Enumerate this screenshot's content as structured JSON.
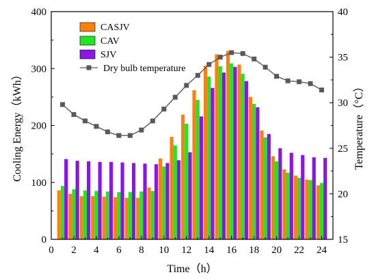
{
  "chart_data": {
    "type": "bar",
    "x": [
      1,
      2,
      3,
      4,
      5,
      6,
      7,
      8,
      9,
      10,
      11,
      12,
      13,
      14,
      15,
      16,
      17,
      18,
      19,
      20,
      21,
      22,
      23,
      24
    ],
    "xlabel": "Time（h）",
    "ylabel": "Cooling Energy（kWh）",
    "y2label": "Temperature（°C）",
    "xlim": [
      0,
      25
    ],
    "xticks": [
      0,
      2,
      4,
      6,
      8,
      10,
      12,
      14,
      16,
      18,
      20,
      22,
      24
    ],
    "ylim": [
      0,
      400
    ],
    "yticks": [
      0,
      100,
      200,
      300,
      400
    ],
    "y2lim": [
      15,
      40
    ],
    "y2ticks": [
      15,
      20,
      25,
      30,
      35,
      40
    ],
    "grid": false,
    "legend_position": "top-left",
    "series": [
      {
        "name": "CASJV",
        "color": "#ff7f0e",
        "axis": "left",
        "type": "bar",
        "values": [
          86,
          80,
          76,
          76,
          75,
          74,
          73,
          73,
          91,
          142,
          180,
          219,
          262,
          305,
          325,
          331,
          307,
          250,
          191,
          146,
          123,
          112,
          105,
          95
        ]
      },
      {
        "name": "CAV",
        "color": "#22e622",
        "axis": "left",
        "type": "bar",
        "values": [
          94,
          88,
          86,
          85,
          84,
          83,
          83,
          84,
          85,
          128,
          165,
          203,
          245,
          286,
          304,
          309,
          291,
          238,
          179,
          137,
          117,
          108,
          104,
          99
        ]
      },
      {
        "name": "SJV",
        "color": "#8b14e6",
        "axis": "left",
        "type": "bar",
        "values": [
          141,
          138,
          137,
          136,
          136,
          135,
          134,
          133,
          132,
          134,
          139,
          153,
          216,
          266,
          293,
          303,
          278,
          232,
          185,
          160,
          152,
          148,
          144,
          143
        ]
      },
      {
        "name": "Dry bulb temperature",
        "color": "#595959",
        "axis": "right",
        "type": "line",
        "values": [
          29.8,
          28.7,
          28.0,
          27.4,
          26.8,
          26.4,
          26.4,
          27.0,
          28.0,
          29.3,
          30.6,
          31.9,
          33.0,
          34.2,
          35.0,
          35.5,
          35.4,
          34.8,
          33.9,
          32.9,
          32.4,
          32.3,
          32.1,
          31.4
        ]
      }
    ]
  }
}
